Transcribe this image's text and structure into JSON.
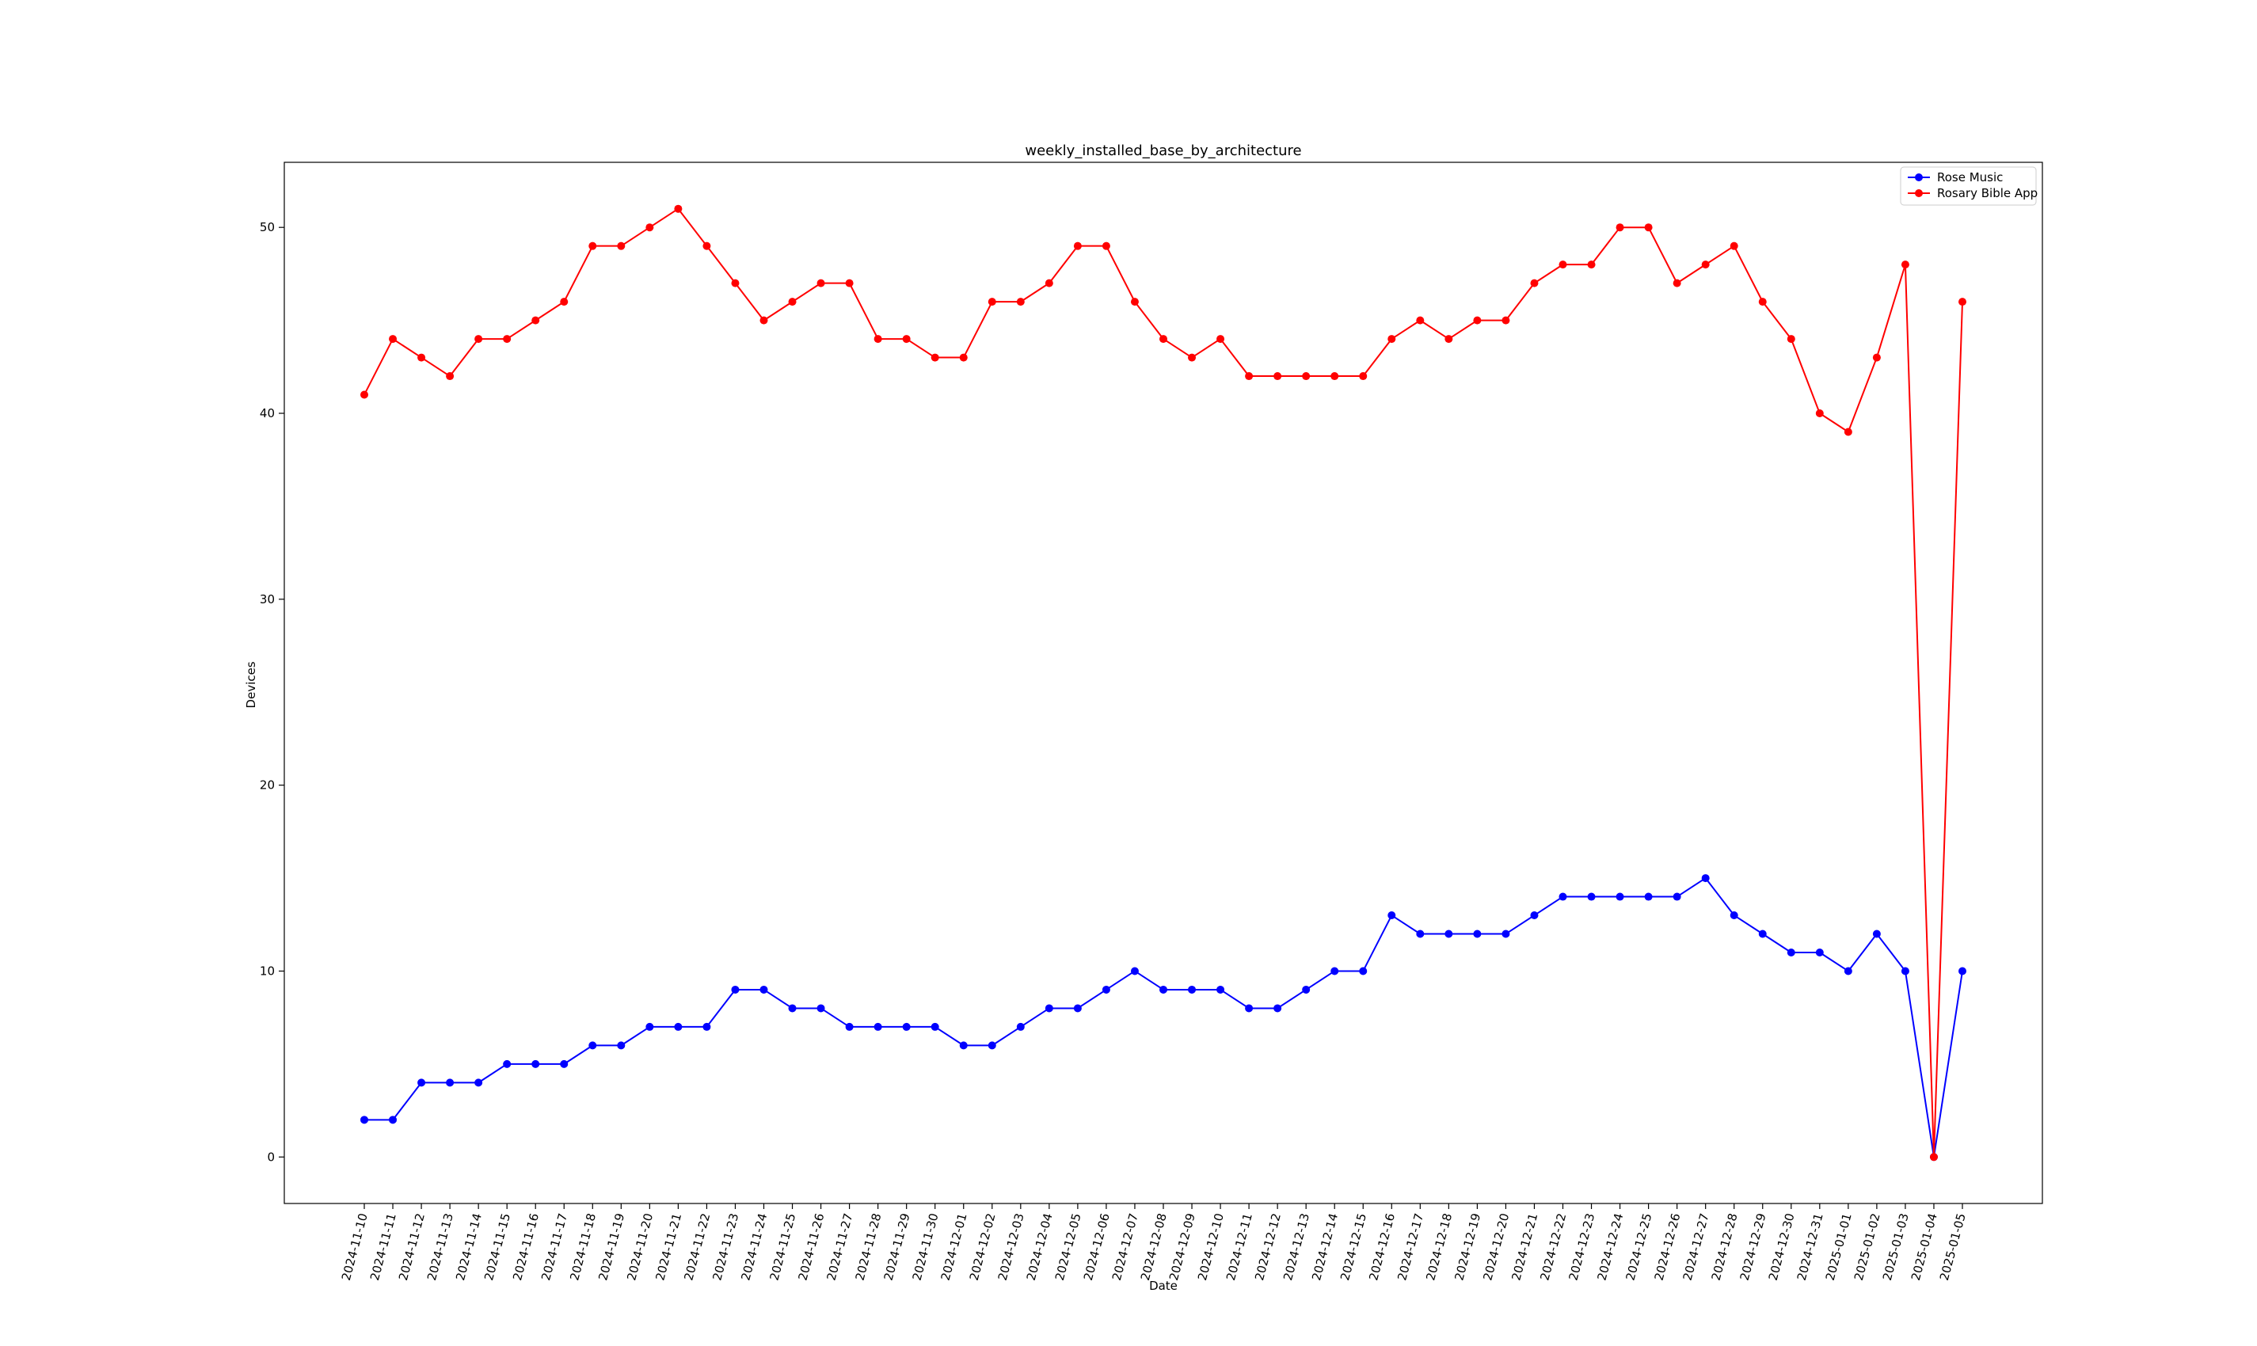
{
  "chart_data": {
    "type": "line",
    "title": "weekly_installed_base_by_architecture",
    "xlabel": "Date",
    "ylabel": "Devices",
    "ylim": [
      -2.5,
      53.5
    ],
    "yticks": [
      0,
      10,
      20,
      30,
      40,
      50
    ],
    "grid": false,
    "legend_position": "top-right",
    "x": [
      "2024-11-10",
      "2024-11-11",
      "2024-11-12",
      "2024-11-13",
      "2024-11-14",
      "2024-11-15",
      "2024-11-16",
      "2024-11-17",
      "2024-11-18",
      "2024-11-19",
      "2024-11-20",
      "2024-11-21",
      "2024-11-22",
      "2024-11-23",
      "2024-11-24",
      "2024-11-25",
      "2024-11-26",
      "2024-11-27",
      "2024-11-28",
      "2024-11-29",
      "2024-11-30",
      "2024-12-01",
      "2024-12-02",
      "2024-12-03",
      "2024-12-04",
      "2024-12-05",
      "2024-12-06",
      "2024-12-07",
      "2024-12-08",
      "2024-12-09",
      "2024-12-10",
      "2024-12-11",
      "2024-12-12",
      "2024-12-13",
      "2024-12-14",
      "2024-12-15",
      "2024-12-16",
      "2024-12-17",
      "2024-12-18",
      "2024-12-19",
      "2024-12-20",
      "2024-12-21",
      "2024-12-22",
      "2024-12-23",
      "2024-12-24",
      "2024-12-25",
      "2024-12-26",
      "2024-12-27",
      "2024-12-28",
      "2024-12-29",
      "2024-12-30",
      "2024-12-31",
      "2025-01-01",
      "2025-01-02",
      "2025-01-03",
      "2025-01-04",
      "2025-01-05"
    ],
    "series": [
      {
        "name": "Rose Music",
        "color": "#0000ff",
        "values": [
          2,
          2,
          4,
          4,
          4,
          5,
          5,
          5,
          6,
          6,
          7,
          7,
          7,
          9,
          9,
          8,
          8,
          7,
          7,
          7,
          7,
          6,
          6,
          7,
          8,
          8,
          9,
          10,
          9,
          9,
          9,
          8,
          8,
          9,
          10,
          10,
          13,
          12,
          12,
          12,
          12,
          13,
          14,
          14,
          14,
          14,
          14,
          15,
          13,
          12,
          11,
          11,
          10,
          12,
          10,
          0,
          10
        ]
      },
      {
        "name": "Rosary Bible App",
        "color": "#ff0000",
        "values": [
          41,
          44,
          43,
          42,
          44,
          44,
          45,
          46,
          49,
          49,
          50,
          51,
          49,
          47,
          45,
          46,
          47,
          47,
          44,
          44,
          43,
          43,
          46,
          46,
          47,
          49,
          49,
          46,
          44,
          43,
          44,
          42,
          42,
          42,
          42,
          42,
          44,
          45,
          44,
          45,
          45,
          47,
          48,
          48,
          50,
          50,
          47,
          48,
          49,
          46,
          44,
          40,
          39,
          43,
          48,
          0,
          46
        ]
      }
    ]
  }
}
